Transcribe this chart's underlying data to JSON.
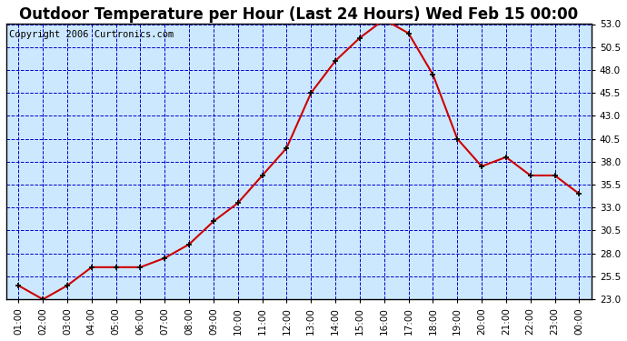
{
  "title": "Outdoor Temperature per Hour (Last 24 Hours) Wed Feb 15 00:00",
  "copyright": "Copyright 2006 Curtronics.com",
  "hours": [
    "01:00",
    "02:00",
    "03:00",
    "04:00",
    "05:00",
    "06:00",
    "07:00",
    "08:00",
    "09:00",
    "10:00",
    "11:00",
    "12:00",
    "13:00",
    "14:00",
    "15:00",
    "16:00",
    "17:00",
    "18:00",
    "19:00",
    "20:00",
    "21:00",
    "22:00",
    "23:00",
    "00:00"
  ],
  "temps": [
    24.5,
    23.0,
    24.5,
    26.5,
    26.5,
    26.5,
    27.5,
    29.0,
    31.5,
    33.5,
    36.5,
    39.5,
    45.5,
    49.0,
    51.5,
    53.5,
    52.0,
    47.5,
    40.5,
    37.5,
    38.5,
    36.5,
    36.5,
    34.5
  ],
  "ylim_min": 23.0,
  "ylim_max": 53.0,
  "yticks": [
    23.0,
    25.5,
    28.0,
    30.5,
    33.0,
    35.5,
    38.0,
    40.5,
    43.0,
    45.5,
    48.0,
    50.5,
    53.0
  ],
  "line_color": "#cc0000",
  "marker_color": "#000000",
  "grid_color": "#0000cc",
  "background_color": "#ffffff",
  "plot_bg_color": "#cce8ff",
  "title_fontsize": 12,
  "copyright_fontsize": 7.5,
  "tick_fontsize": 7.5
}
